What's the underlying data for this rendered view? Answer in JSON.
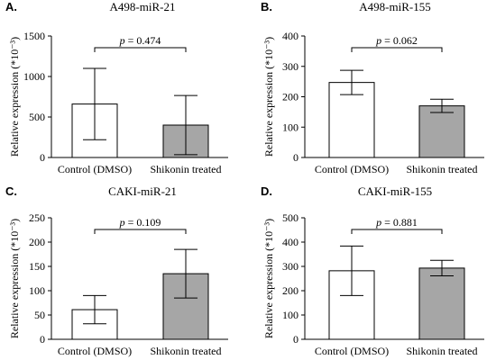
{
  "colors": {
    "control_fill": "#ffffff",
    "treated_fill": "#a6a6a6",
    "stroke": "#000000"
  },
  "chart_data": [
    {
      "type": "bar",
      "panel_label": "A.",
      "title": "A498-miR-21",
      "ylabel": "Relative expression (*10⁻³)",
      "categories": [
        "Control (DMSO)",
        "Shikonin treated"
      ],
      "values": [
        660,
        400
      ],
      "errors": [
        440,
        365
      ],
      "ylim": [
        0,
        1500
      ],
      "yticks": [
        0,
        500,
        1000,
        1500
      ],
      "annotation": {
        "prefix": "p",
        "text": " = 0.474"
      }
    },
    {
      "type": "bar",
      "panel_label": "B.",
      "title": "A498-miR-155",
      "ylabel": "Relative expression (*10⁻³)",
      "categories": [
        "Control (DMSO)",
        "Shikonin treated"
      ],
      "values": [
        247,
        170
      ],
      "errors": [
        40,
        22
      ],
      "ylim": [
        0,
        400
      ],
      "yticks": [
        0,
        100,
        200,
        300,
        400
      ],
      "annotation": {
        "prefix": "p",
        "text": " = 0.062"
      }
    },
    {
      "type": "bar",
      "panel_label": "C.",
      "title": "CAKI-miR-21",
      "ylabel": "Relative expression (*10⁻³)",
      "categories": [
        "Control (DMSO)",
        "Shikonin treated"
      ],
      "values": [
        61,
        135
      ],
      "errors": [
        29,
        50
      ],
      "ylim": [
        0,
        250
      ],
      "yticks": [
        0,
        50,
        100,
        150,
        200,
        250
      ],
      "annotation": {
        "prefix": "p",
        "text": " = 0.109"
      }
    },
    {
      "type": "bar",
      "panel_label": "D.",
      "title": "CAKI-miR-155",
      "ylabel": "Relative expression (*10⁻³)",
      "categories": [
        "Control (DMSO)",
        "Shikonin treated"
      ],
      "values": [
        282,
        293
      ],
      "errors": [
        102,
        32
      ],
      "ylim": [
        0,
        500
      ],
      "yticks": [
        0,
        100,
        200,
        300,
        400,
        500
      ],
      "annotation": {
        "prefix": "p",
        "text": " = 0.881"
      }
    }
  ]
}
